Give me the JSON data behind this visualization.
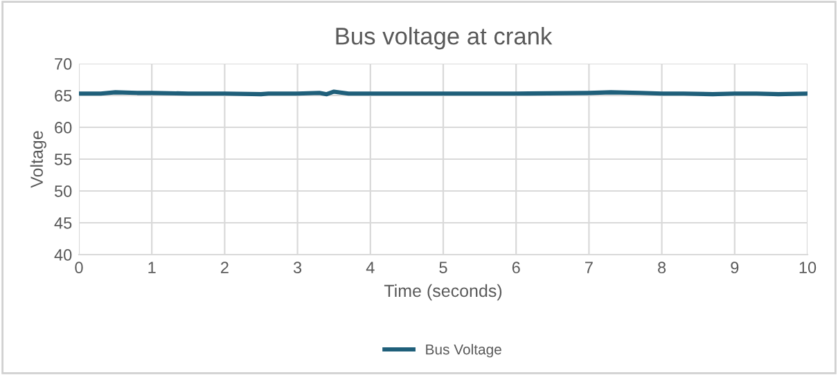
{
  "chart_data": {
    "type": "line",
    "title": "Bus voltage at crank",
    "xlabel": "Time (seconds)",
    "ylabel": "Voltage",
    "series": [
      {
        "name": "Bus Voltage",
        "color": "#1f5f7a",
        "x": [
          0,
          0.3,
          0.5,
          0.8,
          1,
          1.5,
          2,
          2.5,
          2.6,
          3,
          3.3,
          3.4,
          3.5,
          3.7,
          4,
          5,
          6,
          7,
          7.3,
          7.7,
          8,
          8.3,
          8.7,
          9,
          9.3,
          9.6,
          10
        ],
        "values": [
          65.3,
          65.3,
          65.5,
          65.4,
          65.4,
          65.3,
          65.3,
          65.2,
          65.3,
          65.3,
          65.4,
          65.2,
          65.6,
          65.3,
          65.3,
          65.3,
          65.3,
          65.4,
          65.5,
          65.4,
          65.3,
          65.3,
          65.2,
          65.3,
          65.3,
          65.2,
          65.3
        ]
      }
    ],
    "xlim": [
      0,
      10
    ],
    "xticks": [
      0,
      1,
      2,
      3,
      4,
      5,
      6,
      7,
      8,
      9,
      10
    ],
    "ylim": [
      40,
      70
    ],
    "yticks": [
      40,
      45,
      50,
      55,
      60,
      65,
      70
    ],
    "grid": true,
    "legend": "bottom",
    "marker": "none",
    "line_style": "solid"
  }
}
